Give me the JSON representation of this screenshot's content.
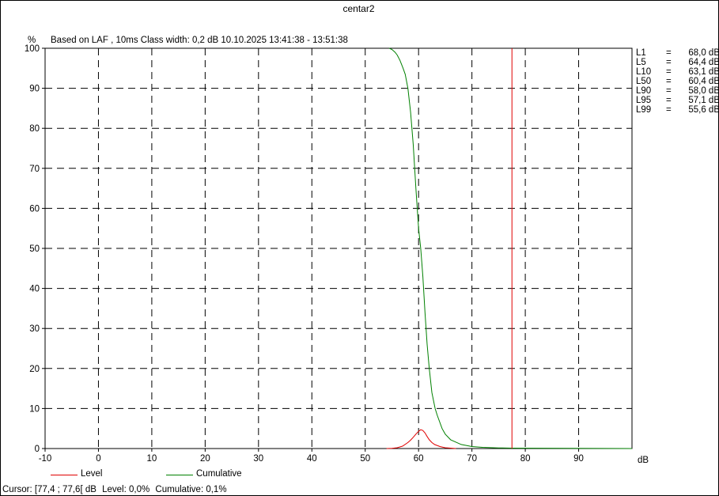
{
  "window": {
    "title": "centar2",
    "subtitle": "Based on LAF , 10ms   Class width: 0,2 dB  10.10.2025 13:41:38 - 13:51:38"
  },
  "colors": {
    "level": "#e00000",
    "cumulative": "#008000",
    "cursor": "#e00000",
    "grid": "#000000"
  },
  "stats": [
    {
      "name": "L1",
      "eq": "=",
      "value": "68,0 dB"
    },
    {
      "name": "L5",
      "eq": "=",
      "value": "64,4 dB"
    },
    {
      "name": "L10",
      "eq": "=",
      "value": "63,1 dB"
    },
    {
      "name": "L50",
      "eq": "=",
      "value": "60,4 dB"
    },
    {
      "name": "L90",
      "eq": "=",
      "value": "58,0 dB"
    },
    {
      "name": "L95",
      "eq": "=",
      "value": "57,1 dB"
    },
    {
      "name": "L99",
      "eq": "=",
      "value": "55,6 dB"
    }
  ],
  "legend": {
    "level_label": "Level",
    "cumulative_label": "Cumulative"
  },
  "cursor": {
    "range": "Cursor: [77,4 ; 77,6[ dB",
    "level": "Level: 0,0%",
    "cumulative": "Cumulative: 0,1%"
  },
  "chart_data": {
    "type": "line",
    "title": "centar2",
    "subtitle": "Based on LAF , 10ms   Class width: 0,2 dB  10.10.2025 13:41:38 - 13:51:38",
    "xlabel": "dB",
    "ylabel": "%",
    "xlim": [
      -10,
      100
    ],
    "ylim": [
      0,
      100
    ],
    "x_ticks": [
      -10,
      0,
      10,
      20,
      30,
      40,
      50,
      60,
      70,
      80,
      90
    ],
    "y_ticks": [
      0,
      10,
      20,
      30,
      40,
      50,
      60,
      70,
      80,
      90,
      100
    ],
    "grid": true,
    "cursor_x": 77.5,
    "series": [
      {
        "name": "Level",
        "x": [
          54,
          55,
          56,
          57,
          58,
          58.5,
          59,
          59.5,
          60,
          60.4,
          60.8,
          61.2,
          61.6,
          62,
          62.5,
          63,
          64,
          65,
          66,
          67
        ],
        "values": [
          0,
          0.05,
          0.2,
          0.6,
          1.5,
          2.1,
          2.8,
          3.6,
          4.3,
          4.7,
          4.5,
          3.9,
          3.0,
          2.2,
          1.5,
          1.0,
          0.5,
          0.2,
          0.1,
          0
        ]
      },
      {
        "name": "Cumulative",
        "x": [
          54.5,
          55,
          55.6,
          56,
          56.5,
          57.1,
          57.5,
          58,
          58.5,
          59,
          59.5,
          60,
          60.4,
          60.8,
          61.2,
          61.6,
          62,
          62.5,
          63.1,
          63.5,
          64.4,
          65,
          66,
          68,
          70,
          72,
          75,
          77.5,
          100
        ],
        "values": [
          100,
          99.7,
          99,
          98.3,
          97,
          95,
          93.5,
          90,
          84,
          76,
          65,
          55,
          50,
          43,
          34,
          26,
          20,
          14,
          10,
          8.3,
          5,
          3.6,
          2.2,
          1,
          0.5,
          0.3,
          0.15,
          0.1,
          0
        ]
      }
    ],
    "stats": [
      {
        "name": "L1",
        "value": 68.0
      },
      {
        "name": "L5",
        "value": 64.4
      },
      {
        "name": "L10",
        "value": 63.1
      },
      {
        "name": "L50",
        "value": 60.4
      },
      {
        "name": "L90",
        "value": 58.0
      },
      {
        "name": "L95",
        "value": 57.1
      },
      {
        "name": "L99",
        "value": 55.6
      }
    ]
  }
}
